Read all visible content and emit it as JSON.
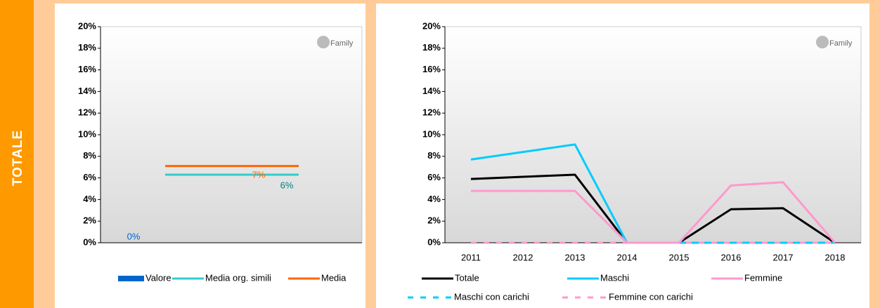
{
  "section_label": "TOTALE",
  "chart_data": [
    {
      "type": "combo",
      "watermark": "Family",
      "categories": [
        null
      ],
      "ylim": [
        0,
        20
      ],
      "yticks": [
        {
          "value": 0,
          "label": "0%"
        },
        {
          "value": 2,
          "label": "2%"
        },
        {
          "value": 4,
          "label": "4%"
        },
        {
          "value": 6,
          "label": "6%"
        },
        {
          "value": 8,
          "label": "8%"
        },
        {
          "value": 10,
          "label": "10%"
        },
        {
          "value": 12,
          "label": "12%"
        },
        {
          "value": 14,
          "label": "14%"
        },
        {
          "value": 16,
          "label": "16%"
        },
        {
          "value": 18,
          "label": "18%"
        },
        {
          "value": 20,
          "label": "20%"
        }
      ],
      "series": [
        {
          "name": "Valore",
          "kind": "bar",
          "color": "#0066cc",
          "values": [
            0
          ],
          "value_labels": [
            "0%"
          ]
        },
        {
          "name": "Media org. simili",
          "kind": "line",
          "color": "#33cccc",
          "values": [
            6.3
          ],
          "value_labels": [
            "6%"
          ]
        },
        {
          "name": "Media",
          "kind": "line",
          "color": "#ff6600",
          "values": [
            7.1
          ],
          "value_labels": [
            "7%"
          ]
        }
      ]
    },
    {
      "type": "line",
      "watermark": "Family",
      "categories": [
        "2011",
        "2012",
        "2013",
        "2014",
        "2015",
        "2016",
        "2017",
        "2018"
      ],
      "ylim": [
        0,
        20
      ],
      "yticks": [
        {
          "value": 0,
          "label": "0%"
        },
        {
          "value": 2,
          "label": "2%"
        },
        {
          "value": 4,
          "label": "4%"
        },
        {
          "value": 6,
          "label": "6%"
        },
        {
          "value": 8,
          "label": "8%"
        },
        {
          "value": 10,
          "label": "10%"
        },
        {
          "value": 12,
          "label": "12%"
        },
        {
          "value": 14,
          "label": "14%"
        },
        {
          "value": 16,
          "label": "16%"
        },
        {
          "value": 18,
          "label": "18%"
        },
        {
          "value": 20,
          "label": "20%"
        }
      ],
      "series": [
        {
          "name": "Totale",
          "color": "#000000",
          "dashed": false,
          "values": [
            5.9,
            6.1,
            6.3,
            0,
            0,
            3.1,
            3.2,
            0
          ]
        },
        {
          "name": "Maschi",
          "color": "#00ccff",
          "dashed": false,
          "values": [
            7.7,
            8.4,
            9.1,
            0,
            0,
            0,
            0,
            0
          ]
        },
        {
          "name": "Femmine",
          "color": "#ff99cc",
          "dashed": false,
          "values": [
            4.8,
            4.8,
            4.8,
            0,
            0,
            5.3,
            5.6,
            0
          ]
        },
        {
          "name": "Maschi con carichi",
          "color": "#00ccff",
          "dashed": true,
          "values": [
            0,
            0,
            0,
            0,
            0,
            0,
            0,
            0
          ]
        },
        {
          "name": "Femmine con carichi",
          "color": "#ff99cc",
          "dashed": true,
          "values": [
            0,
            0,
            0,
            0,
            0,
            0,
            0,
            0
          ]
        }
      ]
    }
  ]
}
